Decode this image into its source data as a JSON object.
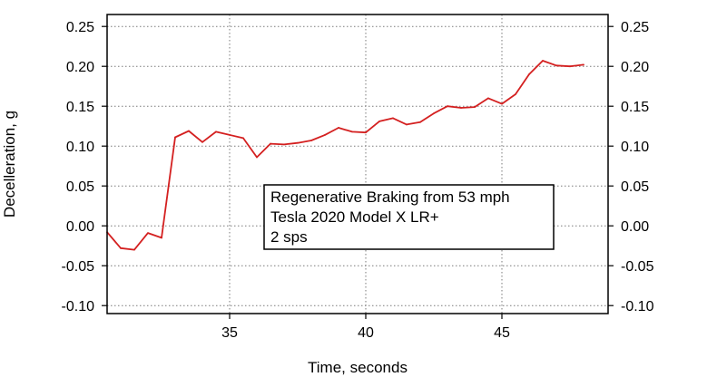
{
  "chart_data": {
    "type": "line",
    "xlabel": "Time, seconds",
    "ylabel": "Decelleration, g",
    "xlim": [
      30.5,
      48.9
    ],
    "ylim": [
      -0.11,
      0.265
    ],
    "x_ticks": [
      35,
      40,
      45
    ],
    "x_tick_labels": [
      "35",
      "40",
      "45"
    ],
    "y_ticks": [
      0.25,
      0.2,
      0.15,
      0.1,
      0.05,
      0.0,
      -0.05,
      -0.1
    ],
    "y_tick_labels": [
      "0.25",
      "0.20",
      "0.15",
      "0.10",
      "0.05",
      "0.00",
      "-0.05",
      "-0.10"
    ],
    "grid": true,
    "right_axis_mirrored": true,
    "legend_placement": "center",
    "annotation_lines": [
      "Regenerative Braking from 53 mph",
      "Tesla 2020 Model X LR+",
      "2 sps"
    ],
    "series": [
      {
        "color": "#d42020",
        "x": [
          30.5,
          31.0,
          31.5,
          32.0,
          32.5,
          33.0,
          33.5,
          34.0,
          34.5,
          35.0,
          35.5,
          36.0,
          36.5,
          37.0,
          37.5,
          38.0,
          38.5,
          39.0,
          39.5,
          40.0,
          40.5,
          41.0,
          41.5,
          42.0,
          42.5,
          43.0,
          43.5,
          44.0,
          44.5,
          45.0,
          45.5,
          46.0,
          46.5,
          47.0,
          47.5,
          48.0
        ],
        "y": [
          -0.008,
          -0.028,
          -0.03,
          -0.009,
          -0.015,
          0.111,
          0.119,
          0.105,
          0.118,
          0.114,
          0.11,
          0.086,
          0.103,
          0.102,
          0.104,
          0.107,
          0.114,
          0.123,
          0.118,
          0.117,
          0.131,
          0.135,
          0.127,
          0.13,
          0.141,
          0.15,
          0.148,
          0.149,
          0.16,
          0.153,
          0.165,
          0.19,
          0.207,
          0.201,
          0.2,
          0.202
        ]
      }
    ]
  }
}
